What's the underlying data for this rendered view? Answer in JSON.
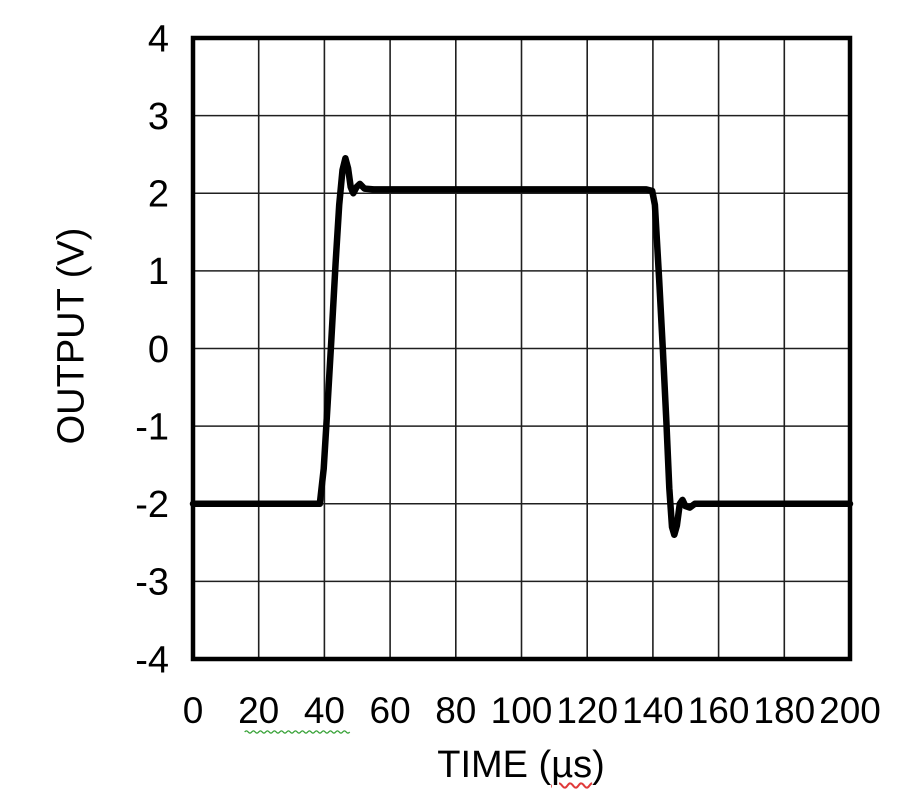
{
  "figure": {
    "ylabel": "OUTPUT (V)",
    "xlabel_prefix": "TIME (",
    "xlabel_unit": "µs",
    "xlabel_suffix": ")"
  },
  "chart_data": {
    "type": "line",
    "title": "",
    "xlabel": "TIME (µs)",
    "ylabel": "OUTPUT (V)",
    "xlim": [
      0,
      200
    ],
    "ylim": [
      -4,
      4
    ],
    "x_ticks": [
      0,
      20,
      40,
      60,
      80,
      100,
      120,
      140,
      160,
      180,
      200
    ],
    "y_ticks": [
      4,
      3,
      2,
      1,
      0,
      -1,
      -2,
      -3,
      -4
    ],
    "grid": true,
    "legend": "none",
    "background": "#ffffff",
    "axis_color": "#000000",
    "grid_color": "#1f1f1f",
    "trace_color": "#000000",
    "trace_width": 6.5,
    "series": [
      {
        "name": "output-pulse-response",
        "description": "Square pulse: -2 V baseline, rises near 40 us with overshoot to ~2.45 V, settles at ~2.05 V, falls near 140 us with undershoot to ~-2.4 V, settles back at -2 V",
        "points": [
          [
            0,
            -2.0
          ],
          [
            38.6,
            -2.0
          ],
          [
            39.8,
            -1.55
          ],
          [
            41.0,
            -0.7
          ],
          [
            42.1,
            0.1
          ],
          [
            43.4,
            1.1
          ],
          [
            44.5,
            1.85
          ],
          [
            45.5,
            2.3
          ],
          [
            46.4,
            2.45
          ],
          [
            47.2,
            2.32
          ],
          [
            48.0,
            2.08
          ],
          [
            48.8,
            2.0
          ],
          [
            49.8,
            2.08
          ],
          [
            50.8,
            2.12
          ],
          [
            52.2,
            2.06
          ],
          [
            55.0,
            2.05
          ],
          [
            100.0,
            2.05
          ],
          [
            138.0,
            2.05
          ],
          [
            139.8,
            2.03
          ],
          [
            140.6,
            1.85
          ],
          [
            141.9,
            0.9
          ],
          [
            143.0,
            0.0
          ],
          [
            144.1,
            -0.95
          ],
          [
            145.0,
            -1.8
          ],
          [
            145.8,
            -2.3
          ],
          [
            146.5,
            -2.4
          ],
          [
            147.3,
            -2.28
          ],
          [
            148.2,
            -2.0
          ],
          [
            149.0,
            -1.95
          ],
          [
            149.9,
            -2.03
          ],
          [
            151.2,
            -2.05
          ],
          [
            152.8,
            -2.0
          ],
          [
            200.0,
            -2.0
          ]
        ]
      }
    ],
    "annotations": [
      {
        "type": "grammar-squiggle",
        "style": "wavy-underline",
        "color": "#33a033",
        "under_tick_labels": [
          20,
          40
        ]
      },
      {
        "type": "spellcheck-squiggle",
        "style": "wavy-underline",
        "color": "#e03a3a",
        "under_text": "µs"
      }
    ]
  }
}
